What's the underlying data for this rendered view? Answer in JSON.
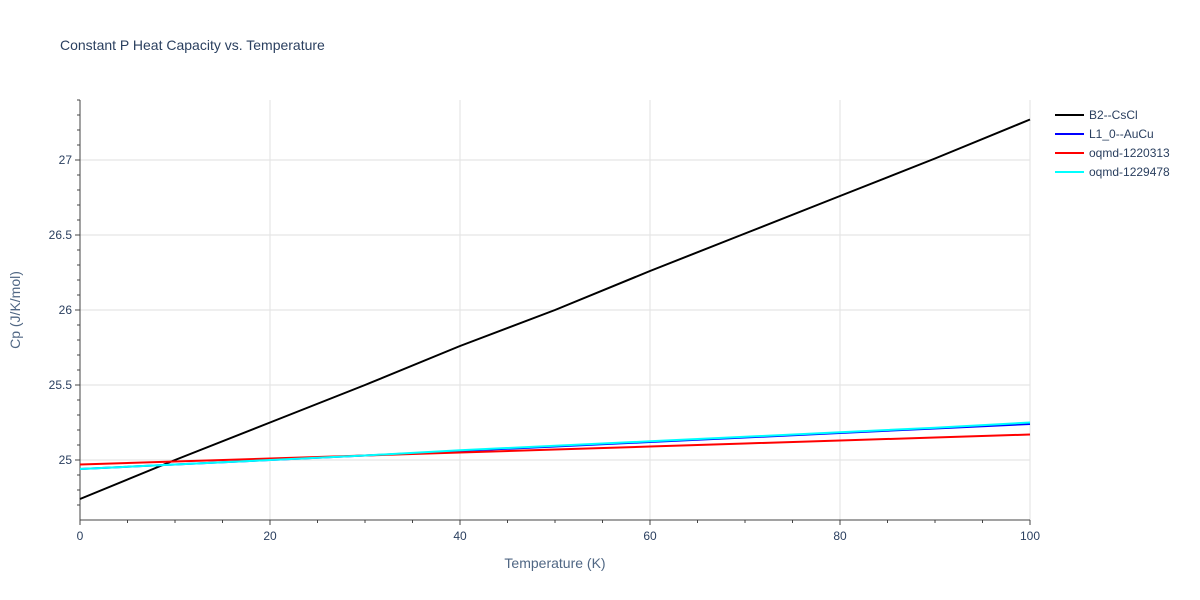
{
  "chart_data": {
    "type": "line",
    "title": "Constant P Heat Capacity vs. Temperature",
    "xlabel": "Temperature (K)",
    "ylabel": "Cp (J/K/mol)",
    "xlim": [
      0,
      100
    ],
    "ylim": [
      24.6,
      27.4
    ],
    "x_ticks": [
      0,
      20,
      40,
      60,
      80,
      100
    ],
    "x_tick_labels": [
      "0",
      "20",
      "40",
      "60",
      "80",
      "100"
    ],
    "y_ticks": [
      25,
      25.5,
      26,
      26.5,
      27
    ],
    "y_tick_labels": [
      "25",
      "25.5",
      "26",
      "26.5",
      "27"
    ],
    "grid": true,
    "legend_position": "top-right",
    "series": [
      {
        "name": "B2--CsCl",
        "color": "#000000",
        "x": [
          0,
          10,
          20,
          30,
          40,
          50,
          60,
          70,
          80,
          90,
          100
        ],
        "y": [
          24.74,
          25.0,
          25.25,
          25.5,
          25.76,
          26.0,
          26.26,
          26.51,
          26.76,
          27.01,
          27.27
        ]
      },
      {
        "name": "L1_0--AuCu",
        "color": "#0000ff",
        "x": [
          0,
          10,
          20,
          30,
          40,
          50,
          60,
          70,
          80,
          90,
          100
        ],
        "y": [
          24.94,
          24.97,
          25.0,
          25.03,
          25.06,
          25.09,
          25.12,
          25.15,
          25.18,
          25.21,
          25.24
        ]
      },
      {
        "name": "oqmd-1220313",
        "color": "#ff0000",
        "x": [
          0,
          10,
          20,
          30,
          40,
          50,
          60,
          70,
          80,
          90,
          100
        ],
        "y": [
          24.97,
          24.99,
          25.01,
          25.03,
          25.05,
          25.07,
          25.09,
          25.11,
          25.13,
          25.15,
          25.17
        ]
      },
      {
        "name": "oqmd-1229478",
        "color": "#00ffff",
        "x": [
          0,
          10,
          20,
          30,
          40,
          50,
          60,
          70,
          80,
          90,
          100
        ],
        "y": [
          24.94,
          24.97,
          25.0,
          25.03,
          25.065,
          25.095,
          25.125,
          25.155,
          25.185,
          25.215,
          25.25
        ]
      }
    ]
  }
}
